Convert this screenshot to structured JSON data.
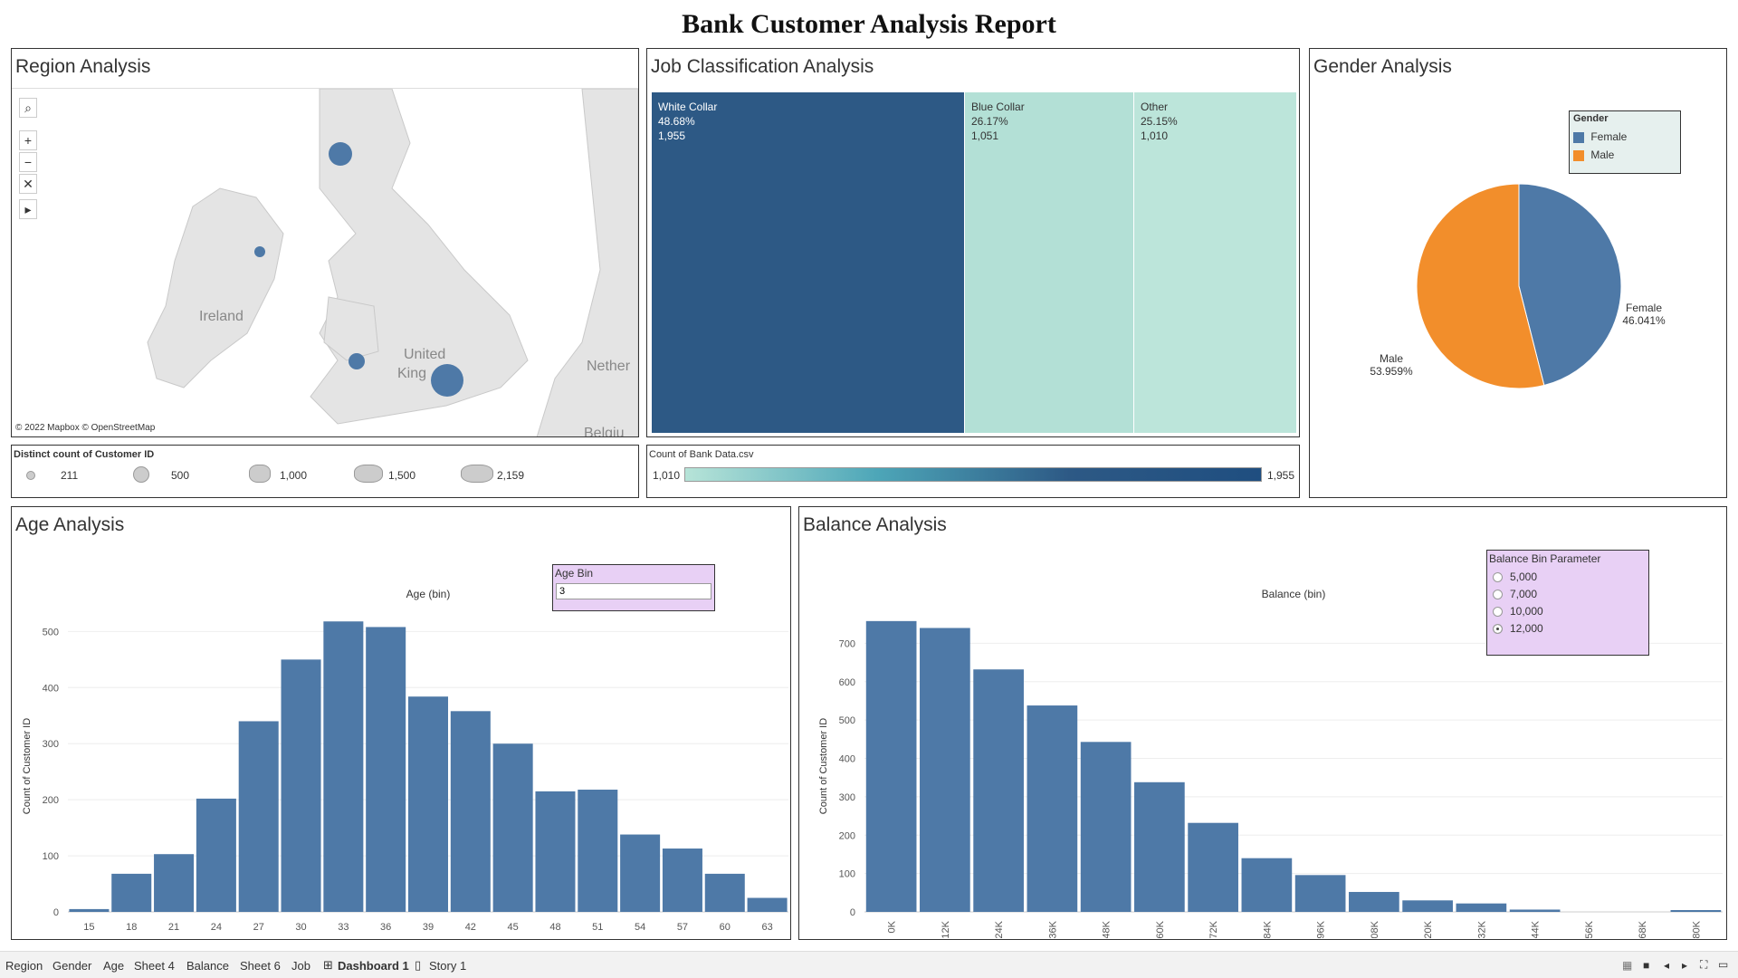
{
  "page_title": "Bank Customer Analysis Report",
  "region": {
    "title": "Region Analysis",
    "map_labels": [
      "Ireland",
      "United",
      "King",
      "Nether",
      "Belgiu"
    ],
    "attribution": "© 2022 Mapbox © OpenStreetMap",
    "legend_title": "Distinct count of Customer ID",
    "legend_values": [
      "211",
      "500",
      "1,000",
      "1,500",
      "2,159"
    ]
  },
  "job": {
    "title": "Job Classification Analysis",
    "items": [
      {
        "name": "White Collar",
        "pct": "48.68%",
        "count": "1,955",
        "color": "#2d5985"
      },
      {
        "name": "Blue Collar",
        "pct": "26.17%",
        "count": "1,051",
        "color": "#b3e0d6"
      },
      {
        "name": "Other",
        "pct": "25.15%",
        "count": "1,010",
        "color": "#bce5da"
      }
    ],
    "legend_title": "Count of Bank Data.csv",
    "legend_min": "1,010",
    "legend_max": "1,955"
  },
  "gender": {
    "title": "Gender Analysis",
    "legend_title": "Gender",
    "legend_items": [
      {
        "name": "Female",
        "color": "#4e79a7"
      },
      {
        "name": "Male",
        "color": "#f28e2b"
      }
    ],
    "female_label": "Female",
    "female_pct": "46.041%",
    "male_label": "Male",
    "male_pct": "53.959%"
  },
  "age": {
    "title": "Age Analysis",
    "param_title": "Age Bin",
    "param_value": "3"
  },
  "balance": {
    "title": "Balance Analysis",
    "param_title": "Balance Bin Parameter",
    "param_options": [
      "5,000",
      "7,000",
      "10,000",
      "12,000"
    ],
    "param_selected": "12,000"
  },
  "chart_data": [
    {
      "type": "bar",
      "title": "Age (bin)",
      "xlabel": "",
      "ylabel": "Count of Customer ID",
      "categories": [
        "15",
        "18",
        "21",
        "24",
        "27",
        "30",
        "33",
        "36",
        "39",
        "42",
        "45",
        "48",
        "51",
        "54",
        "57",
        "60",
        "63"
      ],
      "values": [
        5,
        68,
        103,
        202,
        340,
        450,
        518,
        508,
        384,
        358,
        300,
        215,
        218,
        138,
        113,
        68,
        25
      ],
      "ylim": [
        0,
        520
      ],
      "yticks": [
        0,
        100,
        200,
        300,
        400,
        500
      ],
      "color": "#4e79a7"
    },
    {
      "type": "bar",
      "title": "Balance (bin)",
      "xlabel": "",
      "ylabel": "Count of Customer ID",
      "categories": [
        "0K",
        "12K",
        "24K",
        "36K",
        "48K",
        "60K",
        "72K",
        "84K",
        "96K",
        "108K",
        "120K",
        "132K",
        "144K",
        "156K",
        "168K",
        "180K"
      ],
      "values": [
        758,
        740,
        632,
        538,
        443,
        338,
        232,
        140,
        96,
        52,
        30,
        22,
        6,
        0,
        0,
        2
      ],
      "ylim": [
        0,
        760
      ],
      "yticks": [
        0,
        100,
        200,
        300,
        400,
        500,
        600,
        700
      ],
      "color": "#4e79a7"
    },
    {
      "type": "pie",
      "categories": [
        "Female",
        "Male"
      ],
      "values": [
        46.041,
        53.959
      ],
      "colors": [
        "#4e79a7",
        "#f28e2b"
      ]
    }
  ],
  "tabs": [
    "Region",
    "Gender",
    "Age",
    "Sheet 4",
    "Balance",
    "Sheet 6",
    "Job",
    "Dashboard 1",
    "Story 1"
  ],
  "active_tab": "Dashboard 1"
}
